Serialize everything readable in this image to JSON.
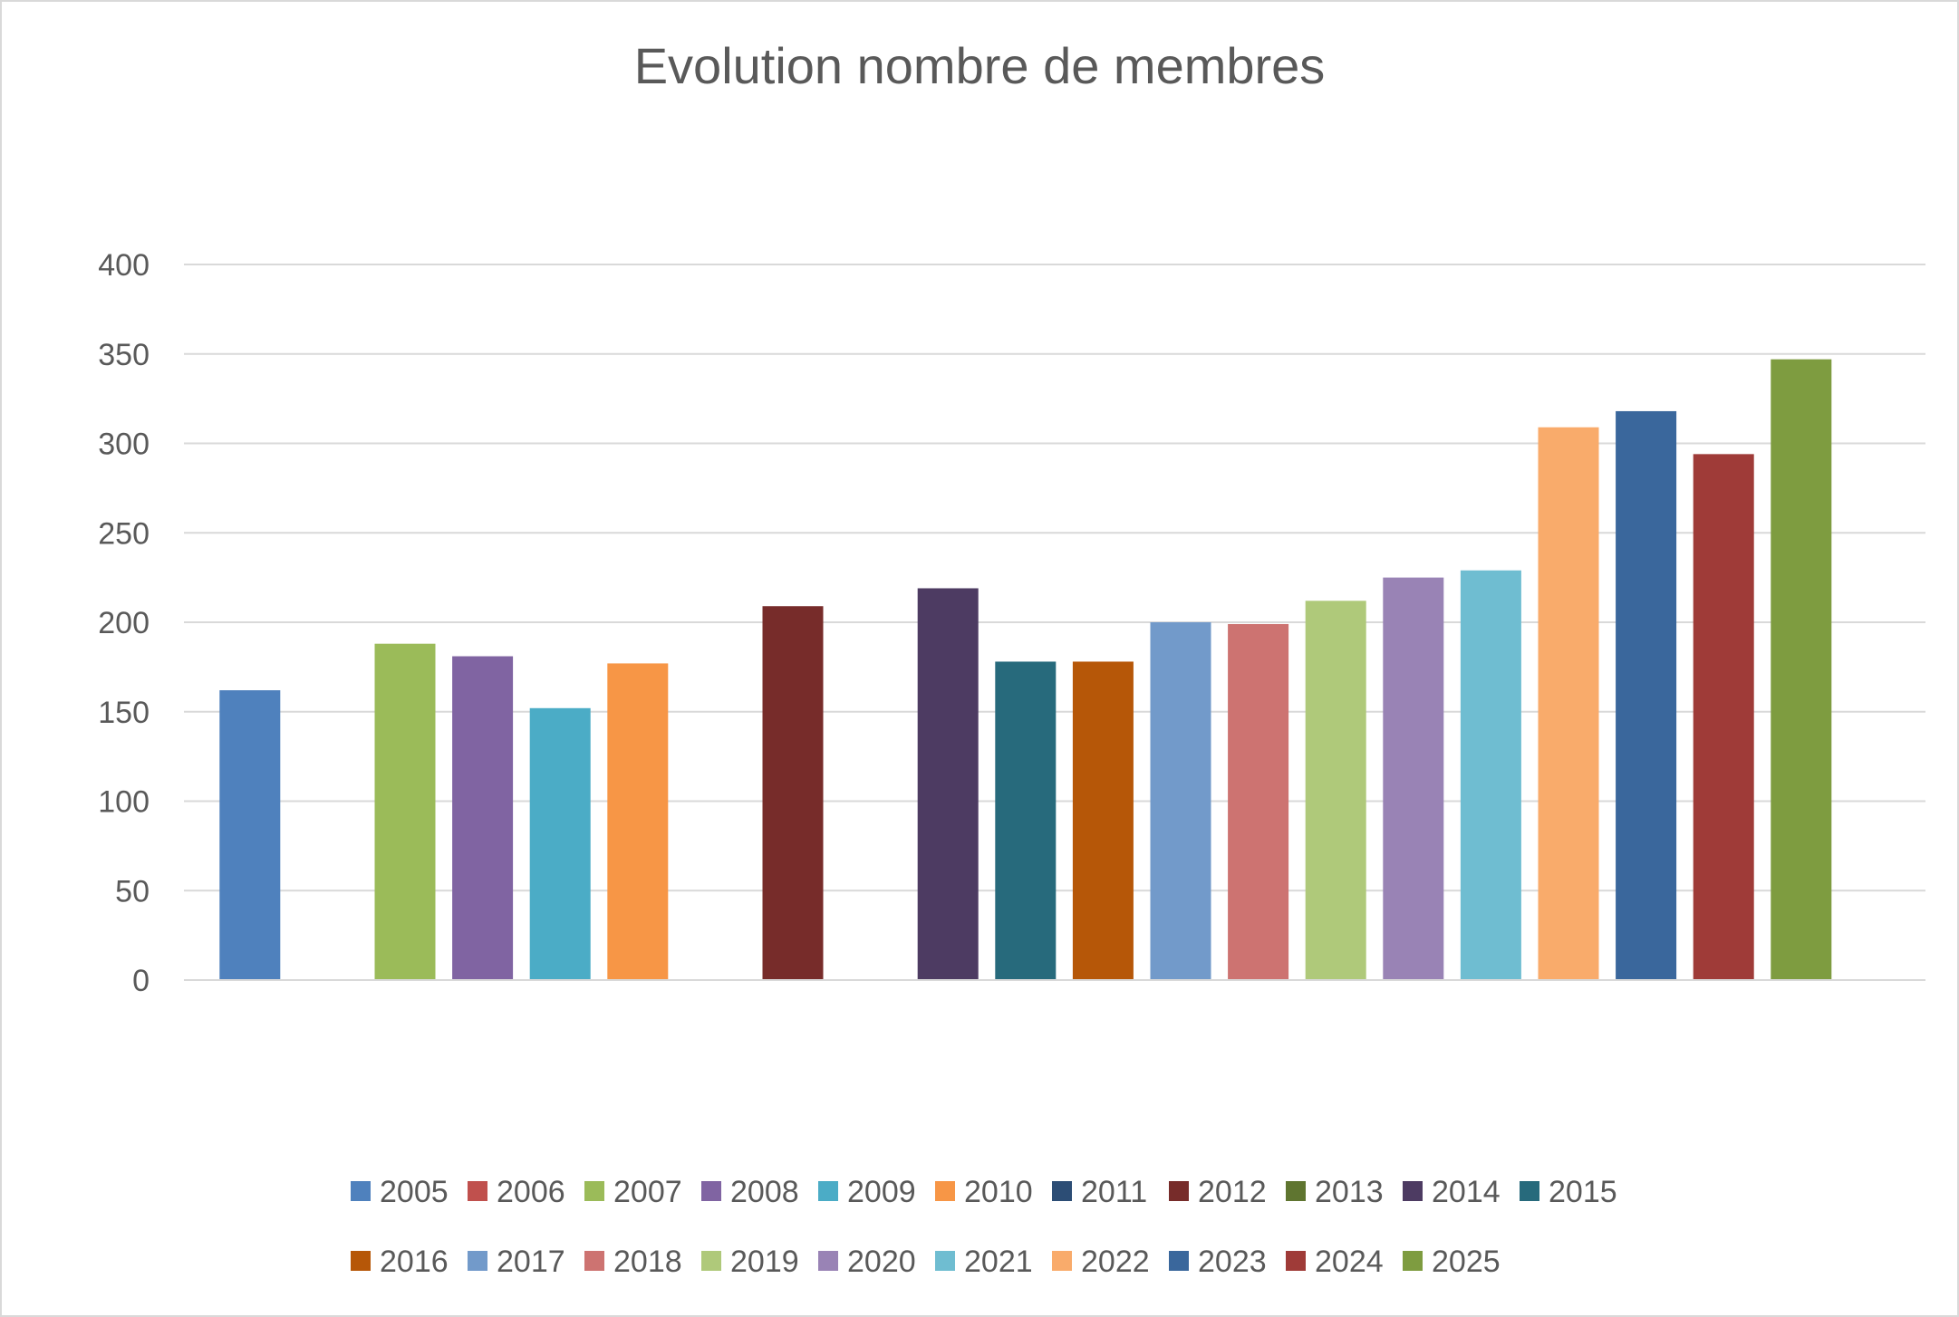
{
  "chart_data": {
    "type": "bar",
    "title": "Evolution nombre de membres",
    "xlabel": "",
    "ylabel": "",
    "ylim": [
      0,
      400
    ],
    "yticks": [
      0,
      50,
      100,
      150,
      200,
      250,
      300,
      350,
      400
    ],
    "grid": true,
    "legend_position": "bottom",
    "series": [
      {
        "name": "2005",
        "value": 162,
        "color": "#4F81BD"
      },
      {
        "name": "2006",
        "value": 0,
        "color": "#C0504D"
      },
      {
        "name": "2007",
        "value": 188,
        "color": "#9BBB59"
      },
      {
        "name": "2008",
        "value": 181,
        "color": "#8064A2"
      },
      {
        "name": "2009",
        "value": 152,
        "color": "#4BACC6"
      },
      {
        "name": "2010",
        "value": 177,
        "color": "#F79646"
      },
      {
        "name": "2011",
        "value": 0,
        "color": "#2C4D75"
      },
      {
        "name": "2012",
        "value": 209,
        "color": "#772C2A"
      },
      {
        "name": "2013",
        "value": 0,
        "color": "#5F7530"
      },
      {
        "name": "2014",
        "value": 219,
        "color": "#4D3B62"
      },
      {
        "name": "2015",
        "value": 178,
        "color": "#276A7C"
      },
      {
        "name": "2016",
        "value": 178,
        "color": "#B65708"
      },
      {
        "name": "2017",
        "value": 200,
        "color": "#729ACA"
      },
      {
        "name": "2018",
        "value": 199,
        "color": "#CD7371"
      },
      {
        "name": "2019",
        "value": 212,
        "color": "#AFC97A"
      },
      {
        "name": "2020",
        "value": 225,
        "color": "#9983B5"
      },
      {
        "name": "2021",
        "value": 229,
        "color": "#6FBDD1"
      },
      {
        "name": "2022",
        "value": 309,
        "color": "#F9AB6B"
      },
      {
        "name": "2023",
        "value": 318,
        "color": "#3A679C"
      },
      {
        "name": "2024",
        "value": 294,
        "color": "#9F3B38"
      },
      {
        "name": "2025",
        "value": 347,
        "color": "#7E9C40"
      }
    ]
  }
}
